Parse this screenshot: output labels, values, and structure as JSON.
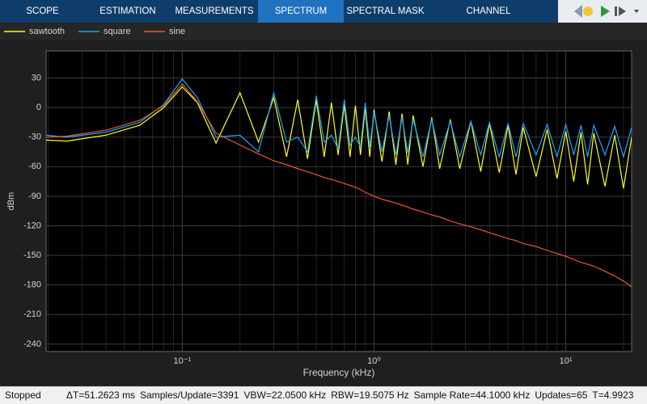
{
  "toolbar": {
    "tabs": [
      "SCOPE",
      "ESTIMATION",
      "MEASUREMENTS",
      "SPECTRUM",
      "SPECTRAL MASK",
      "CHANNEL MEASUREMENTS"
    ]
  },
  "status_bar": {
    "state": "Stopped",
    "items": [
      "ΔT=51.2623 ms",
      "Samples/Update=3391",
      "VBW=22.0500 kHz",
      "RBW=19.5075 Hz",
      "Sample Rate=44.1000 kHz",
      "Updates=65",
      "T=4.9923"
    ]
  },
  "chart_data": {
    "type": "line",
    "x_label": "Frequency (kHz)",
    "y_label": "dBm",
    "x_scale": "log",
    "grid": true,
    "minor_grid": true,
    "legend": "top",
    "xlim": [
      0.0195,
      22.05
    ],
    "ylim": [
      -247.5,
      57.5
    ],
    "xticks": [
      {
        "value": 0.1,
        "label": "10⁻¹"
      },
      {
        "value": 1,
        "label": "10⁰"
      },
      {
        "value": 10,
        "label": "10¹"
      }
    ],
    "yticks": [
      30,
      0,
      -30,
      -60,
      -90,
      -120,
      -150,
      -180,
      -210,
      -240
    ],
    "x": [
      0.0195,
      0.025,
      0.04,
      0.06,
      0.08,
      0.1,
      0.12,
      0.15,
      0.2,
      0.25,
      0.3,
      0.35,
      0.4,
      0.45,
      0.5,
      0.55,
      0.6,
      0.65,
      0.7,
      0.75,
      0.8,
      0.85,
      0.9,
      0.95,
      1.0,
      1.1,
      1.2,
      1.3,
      1.4,
      1.5,
      1.6,
      1.8,
      2.0,
      2.2,
      2.5,
      2.8,
      3.2,
      3.6,
      4.0,
      4.5,
      5,
      5.5,
      6,
      7,
      8,
      9,
      10,
      11,
      12,
      13,
      14,
      16,
      18,
      20,
      22.05
    ],
    "series": [
      {
        "name": "sawtooth",
        "color": "#ffff1a",
        "values": [
          -33,
          -34,
          -28,
          -18,
          0,
          21,
          5,
          -36,
          15,
          -35,
          10,
          -50,
          8,
          -52,
          8,
          -50,
          5,
          -48,
          3,
          -50,
          2,
          -48,
          0,
          -50,
          -2,
          -55,
          -4,
          -58,
          -6,
          -58,
          -8,
          -60,
          -10,
          -62,
          -12,
          -62,
          -14,
          -65,
          -16,
          -66,
          -18,
          -68,
          -20,
          -70,
          -22,
          -72,
          -24,
          -75,
          -25,
          -78,
          -26,
          -80,
          -28,
          -82,
          -30
        ]
      },
      {
        "name": "square",
        "color": "#1ea4ff",
        "values": [
          -28,
          -30,
          -25,
          -15,
          3,
          29,
          10,
          -30,
          -28,
          -45,
          15,
          -35,
          -30,
          -45,
          12,
          -35,
          -28,
          -42,
          8,
          -38,
          -30,
          -40,
          5,
          -40,
          -5,
          -45,
          -8,
          -48,
          -10,
          -46,
          -12,
          -50,
          -12,
          -48,
          -14,
          -50,
          -14,
          -48,
          -15,
          -50,
          -16,
          -50,
          -16,
          -48,
          -17,
          -50,
          -17,
          -48,
          -18,
          -50,
          -18,
          -48,
          -19,
          -50,
          -20
        ]
      },
      {
        "name": "sine",
        "color": "#e8592a",
        "values": [
          -30,
          -29,
          -23,
          -13,
          2,
          24,
          6,
          -26,
          -38,
          -47,
          -54,
          -58,
          -62,
          -65,
          -68,
          -71,
          -73,
          -75,
          -77,
          -79,
          -81,
          -83,
          -86,
          -88,
          -90,
          -93,
          -95,
          -97,
          -99,
          -101,
          -103,
          -106,
          -109,
          -111,
          -115,
          -118,
          -121,
          -124,
          -127,
          -130,
          -133,
          -135,
          -138,
          -141,
          -145,
          -148,
          -151,
          -154,
          -157,
          -159,
          -161,
          -166,
          -171,
          -176,
          -182
        ]
      }
    ]
  }
}
